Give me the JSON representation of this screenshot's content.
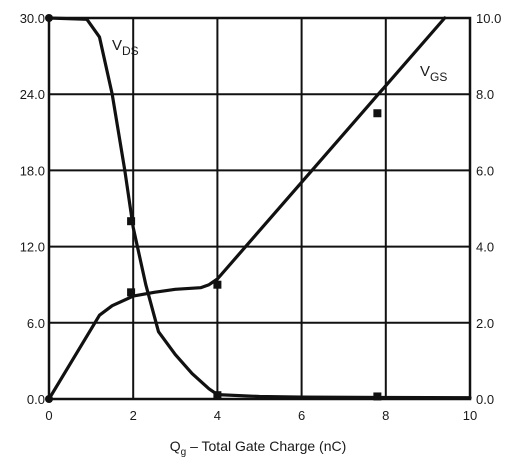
{
  "chart_data": {
    "type": "line",
    "xlabel": "Qg – Total Gate Charge (nC)",
    "xlabel_main": "Q",
    "xlabel_sub": "g",
    "xlabel_rest": " – Total Gate Charge (nC)",
    "xlim": [
      0,
      10
    ],
    "ylim_left": [
      0,
      30
    ],
    "ylim_right": [
      0,
      10
    ],
    "x_ticks": [
      "0",
      "2",
      "4",
      "6",
      "8",
      "10"
    ],
    "y_left_ticks": [
      "0.0",
      "6.0",
      "12.0",
      "18.0",
      "24.0",
      "30.0"
    ],
    "y_right_ticks": [
      "0.0",
      "2.0",
      "4.0",
      "6.0",
      "8.0",
      "10.0"
    ],
    "grid": true,
    "series": [
      {
        "name": "VDS",
        "label_main": "V",
        "label_sub": "DS",
        "axis": "left",
        "x": [
          0,
          0.9,
          1.2,
          1.5,
          1.8,
          2.0,
          2.3,
          2.6,
          3.0,
          3.4,
          3.8,
          4.0,
          5.0,
          6.0,
          8.0,
          10.0
        ],
        "y": [
          30.0,
          29.9,
          28.5,
          24.0,
          18.0,
          13.5,
          9.0,
          5.3,
          3.5,
          2.0,
          0.8,
          0.35,
          0.2,
          0.15,
          0.12,
          0.1
        ]
      },
      {
        "name": "VGS",
        "label_main": "V",
        "label_sub": "GS",
        "axis": "right",
        "x": [
          0,
          1.2,
          1.5,
          2.0,
          2.5,
          3.0,
          3.6,
          3.8,
          4.0,
          9.4
        ],
        "y": [
          0,
          2.2,
          2.45,
          2.7,
          2.8,
          2.88,
          2.92,
          3.0,
          3.15,
          10.0
        ]
      }
    ],
    "markers": [
      {
        "x": 0,
        "y_left": 30.0
      },
      {
        "x": 0,
        "y_left": 0.0
      },
      {
        "x": 1.95,
        "y_left": 14.0
      },
      {
        "x": 1.95,
        "y_left": 8.4
      },
      {
        "x": 4.0,
        "y_left": 9.0
      },
      {
        "x": 4.0,
        "y_left": 0.3
      },
      {
        "x": 7.8,
        "y_left": 22.5
      },
      {
        "x": 7.8,
        "y_left": 0.2
      }
    ],
    "colors": {
      "line": "#111111",
      "grid": "#111111",
      "background": "#ffffff"
    }
  }
}
